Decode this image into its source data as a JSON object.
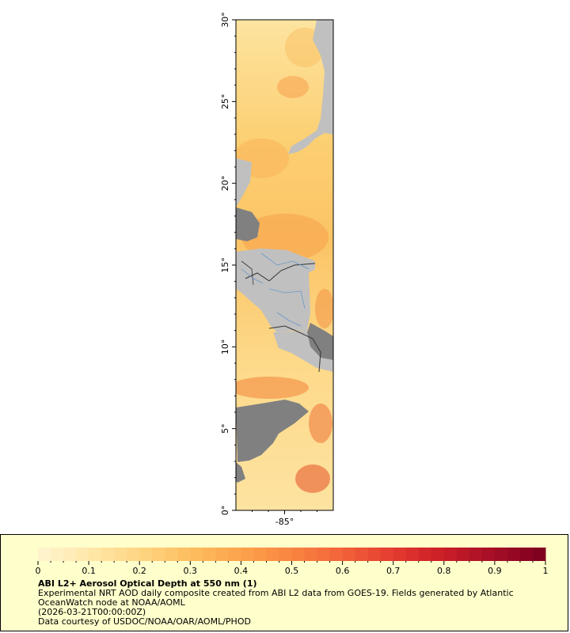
{
  "map": {
    "lat_labels": [
      "0°",
      "5°",
      "10°",
      "15°",
      "20°",
      "25°",
      "30°"
    ],
    "lat_values": [
      0,
      5,
      10,
      15,
      20,
      25,
      30
    ],
    "lon_labels": [
      "-85°"
    ],
    "lon_values": [
      -85
    ],
    "extent": {
      "lon_min": -88,
      "lon_max": -82,
      "lat_min": 0,
      "lat_max": 30
    },
    "colors": {
      "land": "#c0c0c0",
      "nodata": "#808080",
      "ocean_low": "#fde9a8",
      "ocean_mid": "#fcc85f",
      "ocean_high": "#ef6b2c",
      "rivers": "#6699cc",
      "borders": "#333333"
    }
  },
  "legend": {
    "title": "ABI L2+ Aerosol Optical Depth at 550 nm (1)",
    "description": "Experimental NRT AOD daily composite created from ABI L2 data from GOES-19. Fields generated by Atlantic OceanWatch node at NOAA/AOML",
    "time": "(2026-03-21T00:00:00Z)",
    "credit": "Data courtesy of USDOC/NOAA/OAR/AOML/PHOD",
    "tick_labels": [
      "0",
      "0.1",
      "0.2",
      "0.3",
      "0.4",
      "0.5",
      "0.6",
      "0.7",
      "0.8",
      "0.9",
      "1"
    ],
    "tick_values": [
      0,
      0.1,
      0.2,
      0.3,
      0.4,
      0.5,
      0.6,
      0.7,
      0.8,
      0.9,
      1
    ],
    "range": [
      0,
      1
    ],
    "colors": [
      "#fff3cc",
      "#ffe6a6",
      "#fed480",
      "#fdbd5e",
      "#fca24c",
      "#f98540",
      "#f2643a",
      "#e43d30",
      "#cc1f28",
      "#a80f26",
      "#800020"
    ]
  }
}
